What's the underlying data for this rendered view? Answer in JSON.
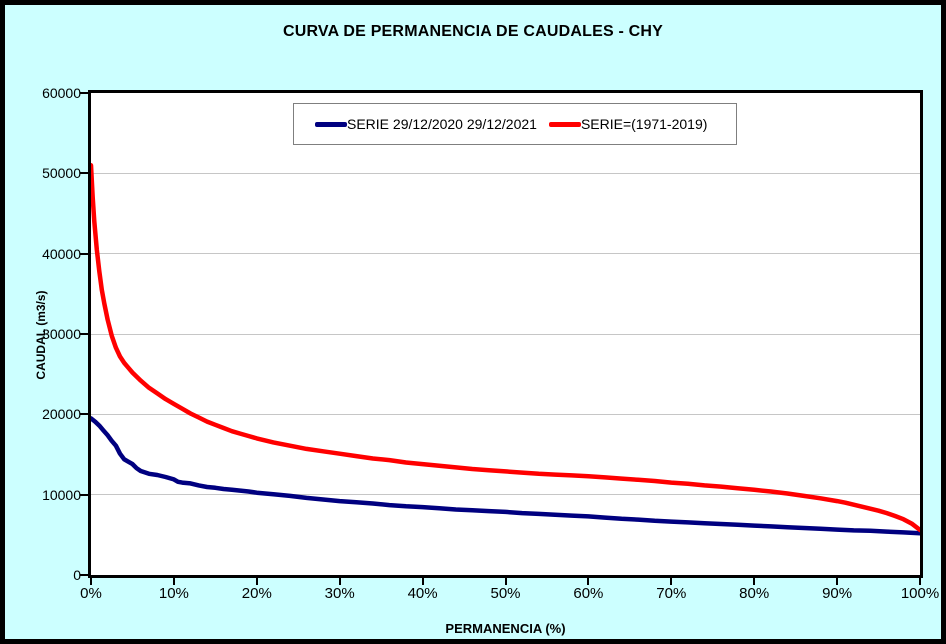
{
  "title": "CURVA DE PERMANENCIA DE CAUDALES - CHY",
  "legend": {
    "entries": [
      {
        "label": "SERIE 29/12/2020 29/12/2021",
        "color": "#000080"
      },
      {
        "label": "SERIE=(1971-2019)",
        "color": "#FF0000"
      }
    ]
  },
  "axes": {
    "y_title": "CAUDAL (m3/s)",
    "x_title": "PERMANENCIA (%)"
  },
  "colors": {
    "background": "#CCFFFF",
    "plot_background": "#FFFFFF",
    "gridline": "#C6C6C6",
    "series_2020_2021": "#000080",
    "series_1971_2019": "#FF0000"
  },
  "chart_data": {
    "type": "line",
    "title": "CURVA DE PERMANENCIA DE CAUDALES - CHY",
    "xlabel": "PERMANENCIA (%)",
    "ylabel": "CAUDAL (m3/s)",
    "xlim": [
      0,
      100
    ],
    "ylim": [
      0,
      60000
    ],
    "x_ticks": [
      0,
      10,
      20,
      30,
      40,
      50,
      60,
      70,
      80,
      90,
      100
    ],
    "x_tick_labels": [
      "0%",
      "10%",
      "20%",
      "30%",
      "40%",
      "50%",
      "60%",
      "70%",
      "80%",
      "90%",
      "100%"
    ],
    "y_ticks": [
      0,
      10000,
      20000,
      30000,
      40000,
      50000,
      60000
    ],
    "y_tick_labels": [
      "0",
      "10000",
      "20000",
      "30000",
      "40000",
      "50000",
      "60000"
    ],
    "grid": "horizontal",
    "legend_position": "top-center",
    "series": [
      {
        "name": "SERIE 29/12/2020 29/12/2021",
        "color": "#000080",
        "points": [
          [
            0,
            19500
          ],
          [
            0.5,
            19100
          ],
          [
            1,
            18600
          ],
          [
            1.5,
            18000
          ],
          [
            2,
            17400
          ],
          [
            2.5,
            16700
          ],
          [
            3,
            16100
          ],
          [
            3.5,
            15100
          ],
          [
            4,
            14400
          ],
          [
            4.5,
            14100
          ],
          [
            5,
            13800
          ],
          [
            5.5,
            13300
          ],
          [
            6,
            12950
          ],
          [
            7,
            12600
          ],
          [
            8,
            12450
          ],
          [
            9,
            12200
          ],
          [
            10,
            11900
          ],
          [
            10.5,
            11600
          ],
          [
            11,
            11500
          ],
          [
            12,
            11400
          ],
          [
            13,
            11150
          ],
          [
            14,
            10950
          ],
          [
            15,
            10850
          ],
          [
            16,
            10700
          ],
          [
            17,
            10600
          ],
          [
            18,
            10500
          ],
          [
            19,
            10400
          ],
          [
            20,
            10250
          ],
          [
            22,
            10050
          ],
          [
            24,
            9850
          ],
          [
            26,
            9600
          ],
          [
            28,
            9400
          ],
          [
            30,
            9200
          ],
          [
            32,
            9050
          ],
          [
            34,
            8900
          ],
          [
            36,
            8700
          ],
          [
            38,
            8550
          ],
          [
            40,
            8450
          ],
          [
            42,
            8300
          ],
          [
            44,
            8150
          ],
          [
            46,
            8050
          ],
          [
            48,
            7950
          ],
          [
            50,
            7850
          ],
          [
            52,
            7700
          ],
          [
            54,
            7600
          ],
          [
            56,
            7500
          ],
          [
            58,
            7400
          ],
          [
            60,
            7300
          ],
          [
            62,
            7150
          ],
          [
            64,
            7000
          ],
          [
            66,
            6900
          ],
          [
            68,
            6750
          ],
          [
            70,
            6650
          ],
          [
            72,
            6550
          ],
          [
            74,
            6450
          ],
          [
            76,
            6350
          ],
          [
            78,
            6250
          ],
          [
            80,
            6150
          ],
          [
            82,
            6050
          ],
          [
            84,
            5950
          ],
          [
            86,
            5850
          ],
          [
            88,
            5750
          ],
          [
            90,
            5650
          ],
          [
            92,
            5550
          ],
          [
            94,
            5500
          ],
          [
            96,
            5400
          ],
          [
            98,
            5300
          ],
          [
            100,
            5200
          ]
        ]
      },
      {
        "name": "SERIE=(1971-2019)",
        "color": "#FF0000",
        "points": [
          [
            0,
            51000
          ],
          [
            0.2,
            47000
          ],
          [
            0.4,
            44000
          ],
          [
            0.7,
            40500
          ],
          [
            1,
            37800
          ],
          [
            1.3,
            35500
          ],
          [
            1.6,
            33800
          ],
          [
            2,
            31800
          ],
          [
            2.5,
            29800
          ],
          [
            3,
            28300
          ],
          [
            3.5,
            27200
          ],
          [
            4,
            26400
          ],
          [
            5,
            25200
          ],
          [
            6,
            24200
          ],
          [
            7,
            23300
          ],
          [
            8,
            22600
          ],
          [
            9,
            21900
          ],
          [
            10,
            21300
          ],
          [
            11,
            20700
          ],
          [
            12,
            20100
          ],
          [
            13,
            19600
          ],
          [
            14,
            19100
          ],
          [
            15,
            18700
          ],
          [
            16,
            18300
          ],
          [
            17,
            17900
          ],
          [
            18,
            17600
          ],
          [
            19,
            17300
          ],
          [
            20,
            17000
          ],
          [
            22,
            16500
          ],
          [
            24,
            16100
          ],
          [
            26,
            15700
          ],
          [
            28,
            15400
          ],
          [
            30,
            15100
          ],
          [
            32,
            14800
          ],
          [
            34,
            14500
          ],
          [
            36,
            14300
          ],
          [
            38,
            14000
          ],
          [
            40,
            13800
          ],
          [
            42,
            13600
          ],
          [
            44,
            13400
          ],
          [
            46,
            13200
          ],
          [
            48,
            13050
          ],
          [
            50,
            12900
          ],
          [
            52,
            12750
          ],
          [
            54,
            12600
          ],
          [
            56,
            12500
          ],
          [
            58,
            12400
          ],
          [
            60,
            12300
          ],
          [
            62,
            12150
          ],
          [
            64,
            12000
          ],
          [
            66,
            11850
          ],
          [
            68,
            11700
          ],
          [
            70,
            11500
          ],
          [
            72,
            11350
          ],
          [
            74,
            11150
          ],
          [
            76,
            11000
          ],
          [
            78,
            10800
          ],
          [
            80,
            10600
          ],
          [
            82,
            10400
          ],
          [
            84,
            10150
          ],
          [
            86,
            9850
          ],
          [
            88,
            9550
          ],
          [
            90,
            9200
          ],
          [
            91,
            9000
          ],
          [
            92,
            8750
          ],
          [
            93,
            8500
          ],
          [
            94,
            8250
          ],
          [
            95,
            8000
          ],
          [
            96,
            7700
          ],
          [
            97,
            7350
          ],
          [
            98,
            6950
          ],
          [
            99,
            6400
          ],
          [
            99.5,
            6000
          ],
          [
            100,
            5600
          ]
        ]
      }
    ]
  }
}
